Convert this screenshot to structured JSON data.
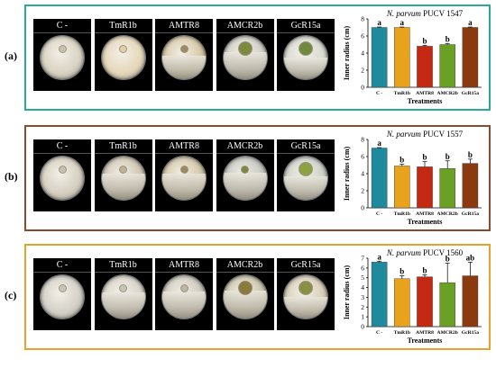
{
  "treatments": [
    "C -",
    "TmR1b",
    "AMTR8",
    "AMCR2b",
    "GcR15a"
  ],
  "bar_colors": [
    "#1f8a9e",
    "#e8a21b",
    "#c42a12",
    "#6aa023",
    "#8b3a10"
  ],
  "panels": [
    {
      "label": "(a)",
      "border_color": "#2aa99b",
      "dish_fill": [
        "#d9d3c3",
        "#e6d8bb",
        "#d7c8a6",
        "#cfd0c8",
        "#d8dad2"
      ],
      "colony_fill": [
        "#c9c1b0",
        "#e0cfa8",
        "#9b8a64",
        "#7c8a3e",
        "#6f8a3c"
      ],
      "bacteria_coverage": [
        0,
        0,
        0.55,
        0.62,
        0.5
      ],
      "chart_data": {
        "type": "bar",
        "title_italic": "N. parvum",
        "title_rest": "PUCV 1547",
        "xlabel": "Treatments",
        "ylabel": "Inner radius (cm)",
        "categories": [
          "C -",
          "TmR1b",
          "AMTR8",
          "AMCR2b",
          "GcR15a"
        ],
        "values": [
          7.0,
          7.0,
          4.8,
          5.0,
          7.0
        ],
        "errors": [
          0.05,
          0.05,
          0.1,
          0.1,
          0.05
        ],
        "letters": [
          "a",
          "a",
          "b",
          "b",
          "a"
        ],
        "ylim": [
          0,
          8
        ],
        "yticks": [
          "0",
          "2",
          "4",
          "6",
          "8"
        ]
      }
    },
    {
      "label": "(b)",
      "border_color": "#8a4a2e",
      "dish_fill": [
        "#d6d0c2",
        "#cfc6b2",
        "#d4c7a8",
        "#c4c7c2",
        "#cdd2c9"
      ],
      "colony_fill": [
        "#c6bfb0",
        "#bdb196",
        "#9c8a5e",
        "#7b8a3a",
        "#8da042"
      ],
      "bacteria_coverage": [
        0,
        0.6,
        0.6,
        0.62,
        0.55
      ],
      "chart_data": {
        "type": "bar",
        "title_italic": "N. parvum",
        "title_rest": "PUCV 1557",
        "xlabel": "Treatments",
        "ylabel": "Inner radius (cm)",
        "categories": [
          "C -",
          "TmR1b",
          "AMTR8",
          "AMCR2b",
          "GcR15a"
        ],
        "values": [
          7.0,
          4.9,
          4.8,
          4.6,
          5.2
        ],
        "errors": [
          0.05,
          0.2,
          0.6,
          0.9,
          0.5
        ],
        "letters": [
          "a",
          "b",
          "b",
          "b",
          "b"
        ],
        "ylim": [
          0,
          8
        ],
        "yticks": [
          "0",
          "2",
          "4",
          "6",
          "8"
        ]
      }
    },
    {
      "label": "(c)",
      "border_color": "#e8a12a",
      "dish_fill": [
        "#d4d1c9",
        "#d8d4ca",
        "#cfcac0",
        "#ccc6ad",
        "#d9cfba"
      ],
      "colony_fill": [
        "#c8c4ba",
        "#c9c3b4",
        "#bdb5a3",
        "#8a7a3c",
        "#8a8f45"
      ],
      "bacteria_coverage": [
        0,
        0.6,
        0.62,
        0.65,
        0.5
      ],
      "chart_data": {
        "type": "bar",
        "title_italic": "N. parvum",
        "title_rest": "PUCV 1560",
        "xlabel": "Treatments",
        "ylabel": "Inner radius (cm)",
        "categories": [
          "C -",
          "TmR1b",
          "AMTR8",
          "AMCR2b",
          "GcR15a"
        ],
        "values": [
          6.6,
          4.9,
          5.1,
          4.5,
          5.2
        ],
        "errors": [
          0.1,
          0.3,
          0.2,
          2.0,
          1.4
        ],
        "letters": [
          "a",
          "b",
          "b",
          "b",
          "ab"
        ],
        "ylim": [
          0,
          7
        ],
        "yticks": [
          "0",
          "1",
          "2",
          "3",
          "4",
          "5",
          "6",
          "7"
        ]
      }
    }
  ]
}
